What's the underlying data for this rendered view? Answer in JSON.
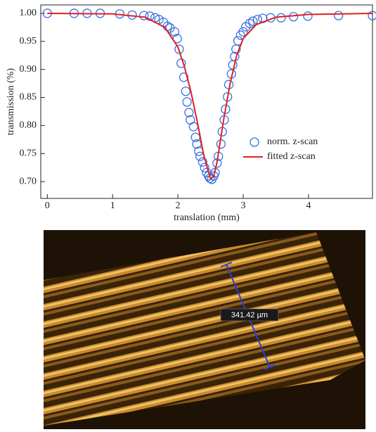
{
  "chart_data": {
    "type": "scatter",
    "xlabel": "translation (mm)",
    "ylabel": "transmission (%)",
    "xlim": [
      -0.1,
      4.98
    ],
    "ylim": [
      0.67,
      1.015
    ],
    "xticks": [
      0,
      1,
      2,
      3,
      4
    ],
    "yticks": [
      {
        "value": 0.7,
        "label": "0.70"
      },
      {
        "value": 0.75,
        "label": "0.75"
      },
      {
        "value": 0.8,
        "label": "0.80"
      },
      {
        "value": 0.85,
        "label": "0.85"
      },
      {
        "value": 0.9,
        "label": "0.90"
      },
      {
        "value": 0.95,
        "label": "0.95"
      },
      {
        "value": 1.0,
        "label": "1.00"
      }
    ],
    "legend": "lower right",
    "series": [
      {
        "name": "norm. z-scan",
        "type": "scatter",
        "color": "#3a6fe0",
        "x": [
          0,
          0.41,
          0.61,
          0.81,
          1.11,
          1.3,
          1.48,
          1.57,
          1.65,
          1.71,
          1.78,
          1.84,
          1.88,
          1.95,
          1.99,
          2.02,
          2.05,
          2.09,
          2.12,
          2.14,
          2.17,
          2.19,
          2.24,
          2.27,
          2.29,
          2.32,
          2.34,
          2.38,
          2.41,
          2.44,
          2.47,
          2.49,
          2.52,
          2.55,
          2.57,
          2.6,
          2.62,
          2.66,
          2.68,
          2.71,
          2.73,
          2.76,
          2.78,
          2.82,
          2.84,
          2.87,
          2.89,
          2.92,
          2.96,
          3.0,
          3.04,
          3.1,
          3.15,
          3.22,
          3.3,
          3.42,
          3.58,
          3.77,
          3.99,
          4.46,
          4.98
        ],
        "values": [
          1.0,
          1.0,
          1.0,
          1.0,
          0.999,
          0.997,
          0.996,
          0.995,
          0.992,
          0.989,
          0.984,
          0.977,
          0.974,
          0.967,
          0.955,
          0.936,
          0.911,
          0.886,
          0.861,
          0.842,
          0.823,
          0.81,
          0.798,
          0.779,
          0.767,
          0.754,
          0.745,
          0.735,
          0.725,
          0.716,
          0.71,
          0.706,
          0.704,
          0.71,
          0.716,
          0.733,
          0.745,
          0.767,
          0.789,
          0.81,
          0.829,
          0.851,
          0.873,
          0.892,
          0.908,
          0.923,
          0.936,
          0.951,
          0.961,
          0.967,
          0.976,
          0.982,
          0.986,
          0.989,
          0.991,
          0.992,
          0.992,
          0.994,
          0.995,
          0.996,
          0.996
        ]
      },
      {
        "name": "fitted z-scan",
        "type": "line",
        "color": "#e0201e",
        "x": [
          0,
          1,
          1.5,
          1.8,
          2.0,
          2.1,
          2.2,
          2.3,
          2.4,
          2.5,
          2.55,
          2.6,
          2.7,
          2.8,
          2.9,
          3.0,
          3.2,
          3.5,
          4.0,
          4.98
        ],
        "values": [
          1.0,
          0.999,
          0.993,
          0.975,
          0.94,
          0.905,
          0.86,
          0.805,
          0.745,
          0.705,
          0.71,
          0.735,
          0.81,
          0.875,
          0.925,
          0.955,
          0.98,
          0.993,
          0.998,
          1.0
        ]
      }
    ]
  },
  "micrograph": {
    "measurement": "341.42 µm"
  }
}
